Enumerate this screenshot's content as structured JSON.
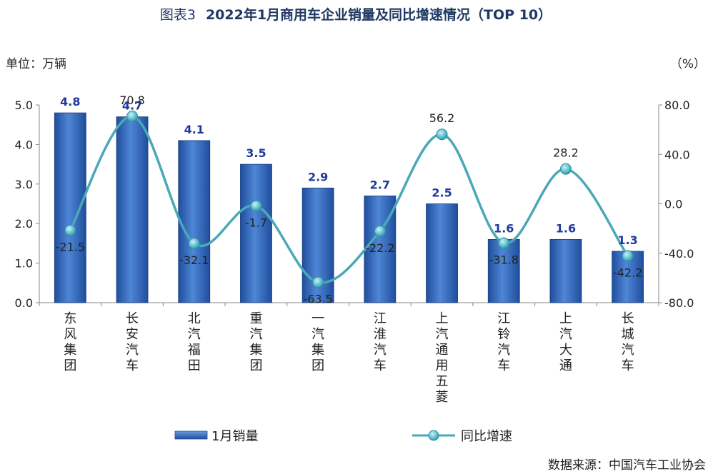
{
  "chart_data": {
    "type": "bar",
    "title_prefix": "图表3",
    "title": "2022年1月商用车企业销量及同比增速情况（TOP 10）",
    "left_unit": "单位：万辆",
    "right_unit": "（%）",
    "categories": [
      "东风集团",
      "长安汽车",
      "北汽福田",
      "重汽集团",
      "一汽集团",
      "江淮汽车",
      "上汽通用五菱",
      "江铃汽车",
      "上汽大通",
      "长城汽车"
    ],
    "series": [
      {
        "name": "1月销量",
        "type": "bar",
        "axis": "left",
        "values": [
          4.8,
          4.7,
          4.1,
          3.5,
          2.9,
          2.7,
          2.5,
          1.6,
          1.6,
          1.3
        ],
        "labels": [
          "4.8",
          "4.7",
          "4.1",
          "3.5",
          "2.9",
          "2.7",
          "2.5",
          "1.6",
          "1.6",
          "1.3"
        ]
      },
      {
        "name": "同比增速",
        "type": "line",
        "axis": "right",
        "values": [
          -21.5,
          70.8,
          -32.1,
          -1.7,
          -63.5,
          -22.2,
          56.2,
          -31.8,
          28.2,
          -42.2
        ],
        "labels": [
          "-21.5",
          "70.8",
          "-32.1",
          "-1.7",
          "-63.5",
          "-22.2",
          "56.2",
          "-31.8",
          "28.2",
          "-42.2"
        ]
      }
    ],
    "ylim_left": [
      0,
      5
    ],
    "yticks_left": [
      "0.0",
      "1.0",
      "2.0",
      "3.0",
      "4.0",
      "5.0"
    ],
    "ylim_right": [
      -80,
      80
    ],
    "yticks_right": [
      "-80.0",
      "-40.0",
      "0.0",
      "40.0",
      "80.0"
    ],
    "legend_placement": "bottom",
    "grid": false,
    "source": "数据来源：中国汽车工业协会",
    "colors": {
      "bar": "#3f75c6",
      "bar_dark": "#1f4e9c",
      "line": "#4aa8b8",
      "marker": "#5bc0cf",
      "title": "#1f3864",
      "bar_label": "#1f3a9c"
    }
  }
}
